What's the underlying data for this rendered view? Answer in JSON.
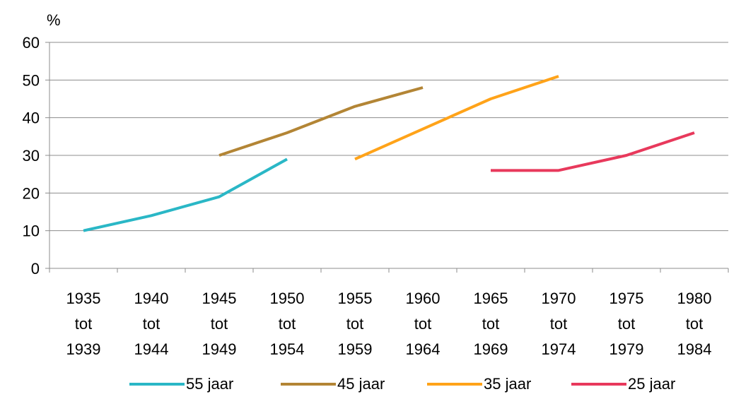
{
  "chart_data": {
    "type": "line",
    "y_unit_label": "%",
    "ylim": [
      0,
      60
    ],
    "yticks": [
      0,
      10,
      20,
      30,
      40,
      50,
      60
    ],
    "categories": [
      [
        "1935",
        "tot",
        "1939"
      ],
      [
        "1940",
        "tot",
        "1944"
      ],
      [
        "1945",
        "tot",
        "1949"
      ],
      [
        "1950",
        "tot",
        "1954"
      ],
      [
        "1955",
        "tot",
        "1959"
      ],
      [
        "1960",
        "tot",
        "1964"
      ],
      [
        "1965",
        "tot",
        "1969"
      ],
      [
        "1970",
        "tot",
        "1974"
      ],
      [
        "1975",
        "tot",
        "1979"
      ],
      [
        "1980",
        "tot",
        "1984"
      ]
    ],
    "grid": "horizontal",
    "legend_position": "bottom",
    "series": [
      {
        "name": "55 jaar",
        "color": "#2ab7c6",
        "values": [
          10,
          14,
          19,
          29,
          null,
          null,
          null,
          null,
          null,
          null
        ]
      },
      {
        "name": "45 jaar",
        "color": "#b38535",
        "values": [
          null,
          null,
          30,
          36,
          43,
          48,
          null,
          null,
          null,
          null
        ]
      },
      {
        "name": "35 jaar",
        "color": "#ffa319",
        "values": [
          null,
          null,
          null,
          null,
          29,
          37,
          45,
          51,
          null,
          null
        ]
      },
      {
        "name": "25 jaar",
        "color": "#e8395c",
        "values": [
          null,
          null,
          null,
          null,
          null,
          null,
          26,
          26,
          30,
          36
        ]
      }
    ]
  }
}
